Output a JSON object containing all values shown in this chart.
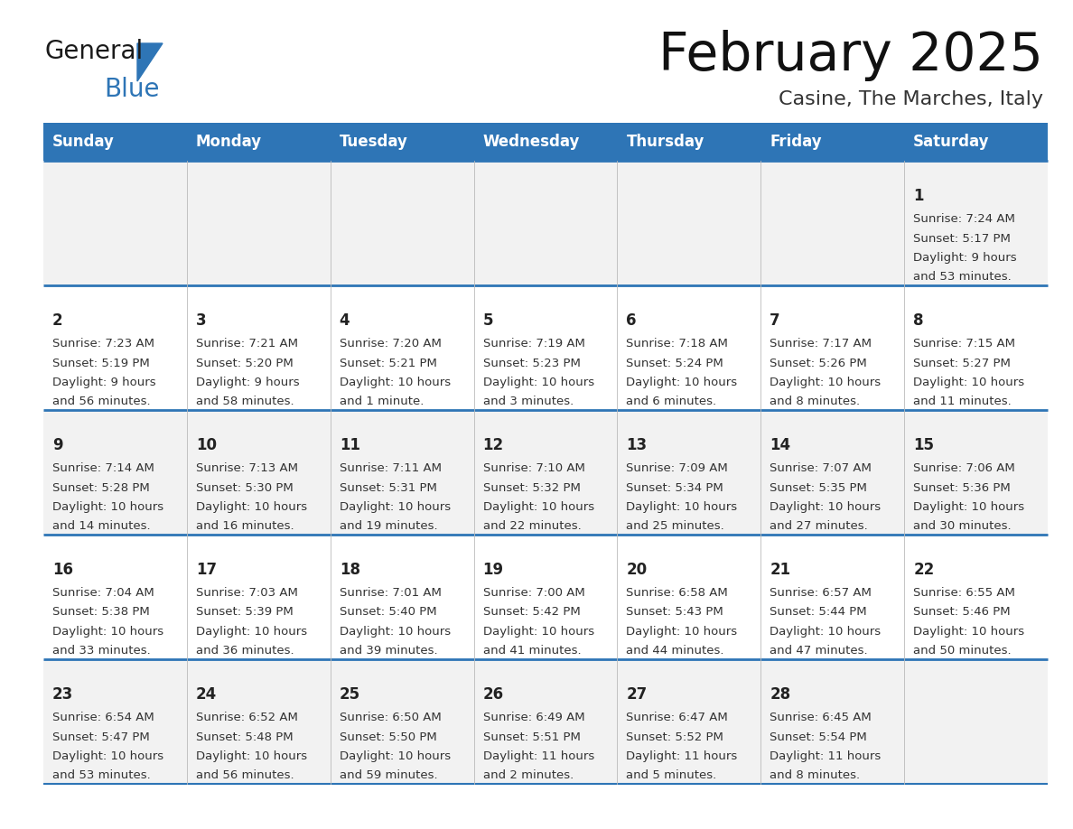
{
  "title": "February 2025",
  "subtitle": "Casine, The Marches, Italy",
  "header_bg": "#2E75B6",
  "header_text_color": "#FFFFFF",
  "cell_bg_odd": "#F2F2F2",
  "cell_bg_even": "#FFFFFF",
  "separator_color": "#2E75B6",
  "day_headers": [
    "Sunday",
    "Monday",
    "Tuesday",
    "Wednesday",
    "Thursday",
    "Friday",
    "Saturday"
  ],
  "days": [
    {
      "day": 1,
      "col": 6,
      "row": 0,
      "sunrise": "7:24 AM",
      "sunset": "5:17 PM",
      "daylight_line1": "Daylight: 9 hours",
      "daylight_line2": "and 53 minutes."
    },
    {
      "day": 2,
      "col": 0,
      "row": 1,
      "sunrise": "7:23 AM",
      "sunset": "5:19 PM",
      "daylight_line1": "Daylight: 9 hours",
      "daylight_line2": "and 56 minutes."
    },
    {
      "day": 3,
      "col": 1,
      "row": 1,
      "sunrise": "7:21 AM",
      "sunset": "5:20 PM",
      "daylight_line1": "Daylight: 9 hours",
      "daylight_line2": "and 58 minutes."
    },
    {
      "day": 4,
      "col": 2,
      "row": 1,
      "sunrise": "7:20 AM",
      "sunset": "5:21 PM",
      "daylight_line1": "Daylight: 10 hours",
      "daylight_line2": "and 1 minute."
    },
    {
      "day": 5,
      "col": 3,
      "row": 1,
      "sunrise": "7:19 AM",
      "sunset": "5:23 PM",
      "daylight_line1": "Daylight: 10 hours",
      "daylight_line2": "and 3 minutes."
    },
    {
      "day": 6,
      "col": 4,
      "row": 1,
      "sunrise": "7:18 AM",
      "sunset": "5:24 PM",
      "daylight_line1": "Daylight: 10 hours",
      "daylight_line2": "and 6 minutes."
    },
    {
      "day": 7,
      "col": 5,
      "row": 1,
      "sunrise": "7:17 AM",
      "sunset": "5:26 PM",
      "daylight_line1": "Daylight: 10 hours",
      "daylight_line2": "and 8 minutes."
    },
    {
      "day": 8,
      "col": 6,
      "row": 1,
      "sunrise": "7:15 AM",
      "sunset": "5:27 PM",
      "daylight_line1": "Daylight: 10 hours",
      "daylight_line2": "and 11 minutes."
    },
    {
      "day": 9,
      "col": 0,
      "row": 2,
      "sunrise": "7:14 AM",
      "sunset": "5:28 PM",
      "daylight_line1": "Daylight: 10 hours",
      "daylight_line2": "and 14 minutes."
    },
    {
      "day": 10,
      "col": 1,
      "row": 2,
      "sunrise": "7:13 AM",
      "sunset": "5:30 PM",
      "daylight_line1": "Daylight: 10 hours",
      "daylight_line2": "and 16 minutes."
    },
    {
      "day": 11,
      "col": 2,
      "row": 2,
      "sunrise": "7:11 AM",
      "sunset": "5:31 PM",
      "daylight_line1": "Daylight: 10 hours",
      "daylight_line2": "and 19 minutes."
    },
    {
      "day": 12,
      "col": 3,
      "row": 2,
      "sunrise": "7:10 AM",
      "sunset": "5:32 PM",
      "daylight_line1": "Daylight: 10 hours",
      "daylight_line2": "and 22 minutes."
    },
    {
      "day": 13,
      "col": 4,
      "row": 2,
      "sunrise": "7:09 AM",
      "sunset": "5:34 PM",
      "daylight_line1": "Daylight: 10 hours",
      "daylight_line2": "and 25 minutes."
    },
    {
      "day": 14,
      "col": 5,
      "row": 2,
      "sunrise": "7:07 AM",
      "sunset": "5:35 PM",
      "daylight_line1": "Daylight: 10 hours",
      "daylight_line2": "and 27 minutes."
    },
    {
      "day": 15,
      "col": 6,
      "row": 2,
      "sunrise": "7:06 AM",
      "sunset": "5:36 PM",
      "daylight_line1": "Daylight: 10 hours",
      "daylight_line2": "and 30 minutes."
    },
    {
      "day": 16,
      "col": 0,
      "row": 3,
      "sunrise": "7:04 AM",
      "sunset": "5:38 PM",
      "daylight_line1": "Daylight: 10 hours",
      "daylight_line2": "and 33 minutes."
    },
    {
      "day": 17,
      "col": 1,
      "row": 3,
      "sunrise": "7:03 AM",
      "sunset": "5:39 PM",
      "daylight_line1": "Daylight: 10 hours",
      "daylight_line2": "and 36 minutes."
    },
    {
      "day": 18,
      "col": 2,
      "row": 3,
      "sunrise": "7:01 AM",
      "sunset": "5:40 PM",
      "daylight_line1": "Daylight: 10 hours",
      "daylight_line2": "and 39 minutes."
    },
    {
      "day": 19,
      "col": 3,
      "row": 3,
      "sunrise": "7:00 AM",
      "sunset": "5:42 PM",
      "daylight_line1": "Daylight: 10 hours",
      "daylight_line2": "and 41 minutes."
    },
    {
      "day": 20,
      "col": 4,
      "row": 3,
      "sunrise": "6:58 AM",
      "sunset": "5:43 PM",
      "daylight_line1": "Daylight: 10 hours",
      "daylight_line2": "and 44 minutes."
    },
    {
      "day": 21,
      "col": 5,
      "row": 3,
      "sunrise": "6:57 AM",
      "sunset": "5:44 PM",
      "daylight_line1": "Daylight: 10 hours",
      "daylight_line2": "and 47 minutes."
    },
    {
      "day": 22,
      "col": 6,
      "row": 3,
      "sunrise": "6:55 AM",
      "sunset": "5:46 PM",
      "daylight_line1": "Daylight: 10 hours",
      "daylight_line2": "and 50 minutes."
    },
    {
      "day": 23,
      "col": 0,
      "row": 4,
      "sunrise": "6:54 AM",
      "sunset": "5:47 PM",
      "daylight_line1": "Daylight: 10 hours",
      "daylight_line2": "and 53 minutes."
    },
    {
      "day": 24,
      "col": 1,
      "row": 4,
      "sunrise": "6:52 AM",
      "sunset": "5:48 PM",
      "daylight_line1": "Daylight: 10 hours",
      "daylight_line2": "and 56 minutes."
    },
    {
      "day": 25,
      "col": 2,
      "row": 4,
      "sunrise": "6:50 AM",
      "sunset": "5:50 PM",
      "daylight_line1": "Daylight: 10 hours",
      "daylight_line2": "and 59 minutes."
    },
    {
      "day": 26,
      "col": 3,
      "row": 4,
      "sunrise": "6:49 AM",
      "sunset": "5:51 PM",
      "daylight_line1": "Daylight: 11 hours",
      "daylight_line2": "and 2 minutes."
    },
    {
      "day": 27,
      "col": 4,
      "row": 4,
      "sunrise": "6:47 AM",
      "sunset": "5:52 PM",
      "daylight_line1": "Daylight: 11 hours",
      "daylight_line2": "and 5 minutes."
    },
    {
      "day": 28,
      "col": 5,
      "row": 4,
      "sunrise": "6:45 AM",
      "sunset": "5:54 PM",
      "daylight_line1": "Daylight: 11 hours",
      "daylight_line2": "and 8 minutes."
    }
  ],
  "logo_text1": "General",
  "logo_text2": "Blue",
  "logo_text1_color": "#1a1a1a",
  "logo_text2_color": "#2E75B6",
  "logo_triangle_color": "#2E75B6",
  "title_fontsize": 42,
  "subtitle_fontsize": 16,
  "header_fontsize": 12,
  "day_num_fontsize": 12,
  "cell_text_fontsize": 9.5
}
